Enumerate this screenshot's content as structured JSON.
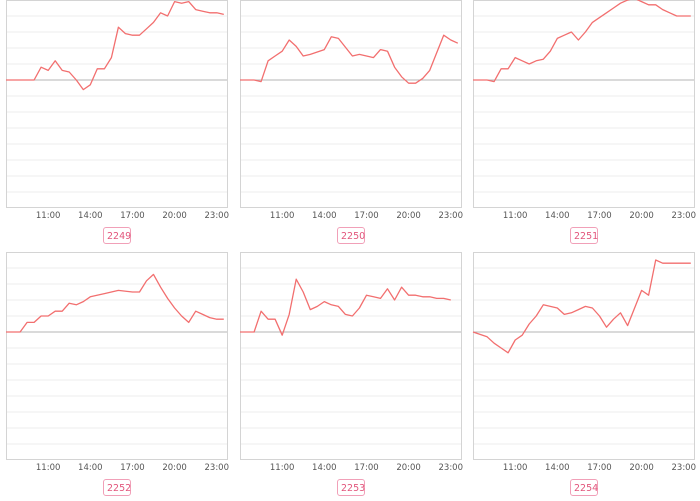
{
  "chart_data": [
    {
      "type": "line",
      "label": "2249",
      "x_ticks": [
        "11:00",
        "14:00",
        "17:00",
        "20:00",
        "23:00"
      ],
      "x_range": [
        8,
        23.8
      ],
      "y_range": [
        -8,
        5
      ],
      "baseline": 0,
      "x": [
        8,
        9,
        10,
        10.5,
        11,
        11.5,
        12,
        12.5,
        13,
        13.5,
        14,
        14.5,
        15,
        15.5,
        16,
        16.5,
        17,
        17.5,
        18,
        18.5,
        19,
        19.5,
        20,
        20.5,
        21,
        21.5,
        22,
        22.5,
        23,
        23.5
      ],
      "y": [
        0,
        0,
        0,
        0.8,
        0.6,
        1.2,
        0.6,
        0.5,
        0,
        -0.6,
        -0.3,
        0.7,
        0.7,
        1.4,
        3.3,
        2.9,
        2.8,
        2.8,
        3.2,
        3.6,
        4.2,
        4.0,
        4.9,
        4.8,
        4.9,
        4.4,
        4.3,
        4.2,
        4.2,
        4.1
      ]
    },
    {
      "type": "line",
      "label": "2250",
      "x_ticks": [
        "11:00",
        "14:00",
        "17:00",
        "20:00",
        "23:00"
      ],
      "x_range": [
        8,
        23.8
      ],
      "y_range": [
        -8,
        5
      ],
      "baseline": 0,
      "x": [
        8,
        9,
        9.5,
        10,
        10.5,
        11,
        11.5,
        12,
        12.5,
        13,
        14,
        14.5,
        15,
        16,
        16.5,
        17,
        17.5,
        18,
        18.5,
        19,
        19.5,
        20,
        20.5,
        21,
        21.5,
        22,
        22.5,
        23,
        23.5
      ],
      "y": [
        0,
        0,
        -0.1,
        1.2,
        1.5,
        1.8,
        2.5,
        2.1,
        1.5,
        1.6,
        1.9,
        2.7,
        2.6,
        1.5,
        1.6,
        1.5,
        1.4,
        1.9,
        1.8,
        0.8,
        0.2,
        -0.2,
        -0.2,
        0.1,
        0.6,
        1.7,
        2.8,
        2.5,
        2.3
      ]
    },
    {
      "type": "line",
      "label": "2251",
      "x_ticks": [
        "11:00",
        "14:00",
        "17:00",
        "20:00",
        "23:00"
      ],
      "x_range": [
        8,
        23.8
      ],
      "y_range": [
        -8,
        5
      ],
      "baseline": 0,
      "x": [
        8,
        9,
        9.5,
        10,
        10.5,
        11,
        11.5,
        12,
        12.5,
        13,
        13.5,
        14,
        14.5,
        15,
        15.5,
        16,
        16.5,
        17,
        17.5,
        18,
        18.5,
        19,
        19.5,
        20,
        20.5,
        21,
        21.5,
        22,
        22.5,
        23,
        23.5
      ],
      "y": [
        0,
        0,
        -0.1,
        0.7,
        0.7,
        1.4,
        1.2,
        1.0,
        1.2,
        1.3,
        1.8,
        2.6,
        2.8,
        3.0,
        2.5,
        3.0,
        3.6,
        3.9,
        4.2,
        4.5,
        4.8,
        5.0,
        5.1,
        4.9,
        4.7,
        4.7,
        4.4,
        4.2,
        4.0,
        4.0,
        4.0
      ]
    },
    {
      "type": "line",
      "label": "2252",
      "x_ticks": [
        "11:00",
        "14:00",
        "17:00",
        "20:00",
        "23:00"
      ],
      "x_range": [
        8,
        23.8
      ],
      "y_range": [
        -8,
        5
      ],
      "baseline": 0,
      "x": [
        8,
        9,
        9.5,
        10,
        10.5,
        11,
        11.5,
        12,
        12.5,
        13,
        13.5,
        14,
        15,
        16,
        17,
        17.5,
        18,
        18.5,
        19,
        19.5,
        20,
        20.5,
        21,
        21.5,
        22,
        22.5,
        23,
        23.5
      ],
      "y": [
        0,
        0,
        0.6,
        0.6,
        1.0,
        1.0,
        1.3,
        1.3,
        1.8,
        1.7,
        1.9,
        2.2,
        2.4,
        2.6,
        2.5,
        2.5,
        3.2,
        3.6,
        2.8,
        2.1,
        1.5,
        1.0,
        0.6,
        1.3,
        1.1,
        0.9,
        0.8,
        0.8
      ]
    },
    {
      "type": "line",
      "label": "2253",
      "x_ticks": [
        "11:00",
        "14:00",
        "17:00",
        "20:00",
        "23:00"
      ],
      "x_range": [
        8,
        23.8
      ],
      "y_range": [
        -8,
        5
      ],
      "baseline": 0,
      "x": [
        8,
        9,
        9.5,
        10,
        10.5,
        11,
        11.5,
        12,
        12.5,
        13,
        13.5,
        14,
        14.5,
        15,
        15.5,
        16,
        16.5,
        17,
        17.5,
        18,
        18.5,
        19,
        19.5,
        20,
        20.5,
        21,
        21.5,
        22,
        22.5,
        23
      ],
      "y": [
        0,
        0,
        1.3,
        0.8,
        0.8,
        -0.2,
        1.1,
        3.3,
        2.5,
        1.4,
        1.6,
        1.9,
        1.7,
        1.6,
        1.1,
        1.0,
        1.5,
        2.3,
        2.2,
        2.1,
        2.7,
        2.0,
        2.8,
        2.3,
        2.3,
        2.2,
        2.2,
        2.1,
        2.1,
        2.0
      ]
    },
    {
      "type": "line",
      "label": "2254",
      "x_ticks": [
        "11:00",
        "14:00",
        "17:00",
        "20:00",
        "23:00"
      ],
      "x_range": [
        8,
        23.8
      ],
      "y_range": [
        -8,
        5
      ],
      "baseline": 0,
      "x": [
        8,
        9,
        9.5,
        10,
        10.5,
        11,
        11.5,
        12,
        12.5,
        13,
        13.5,
        14,
        14.5,
        15,
        15.5,
        16,
        16.5,
        17,
        17.5,
        18,
        18.5,
        19,
        19.5,
        20,
        20.5,
        21,
        21.5,
        22,
        22.5,
        23,
        23.5
      ],
      "y": [
        0,
        -0.3,
        -0.7,
        -1.0,
        -1.3,
        -0.5,
        -0.2,
        0.5,
        1.0,
        1.7,
        1.6,
        1.5,
        1.1,
        1.2,
        1.4,
        1.6,
        1.5,
        1.0,
        0.3,
        0.8,
        1.2,
        0.4,
        1.5,
        2.6,
        2.3,
        4.5,
        4.3,
        4.3,
        4.3,
        4.3,
        4.3
      ]
    }
  ]
}
